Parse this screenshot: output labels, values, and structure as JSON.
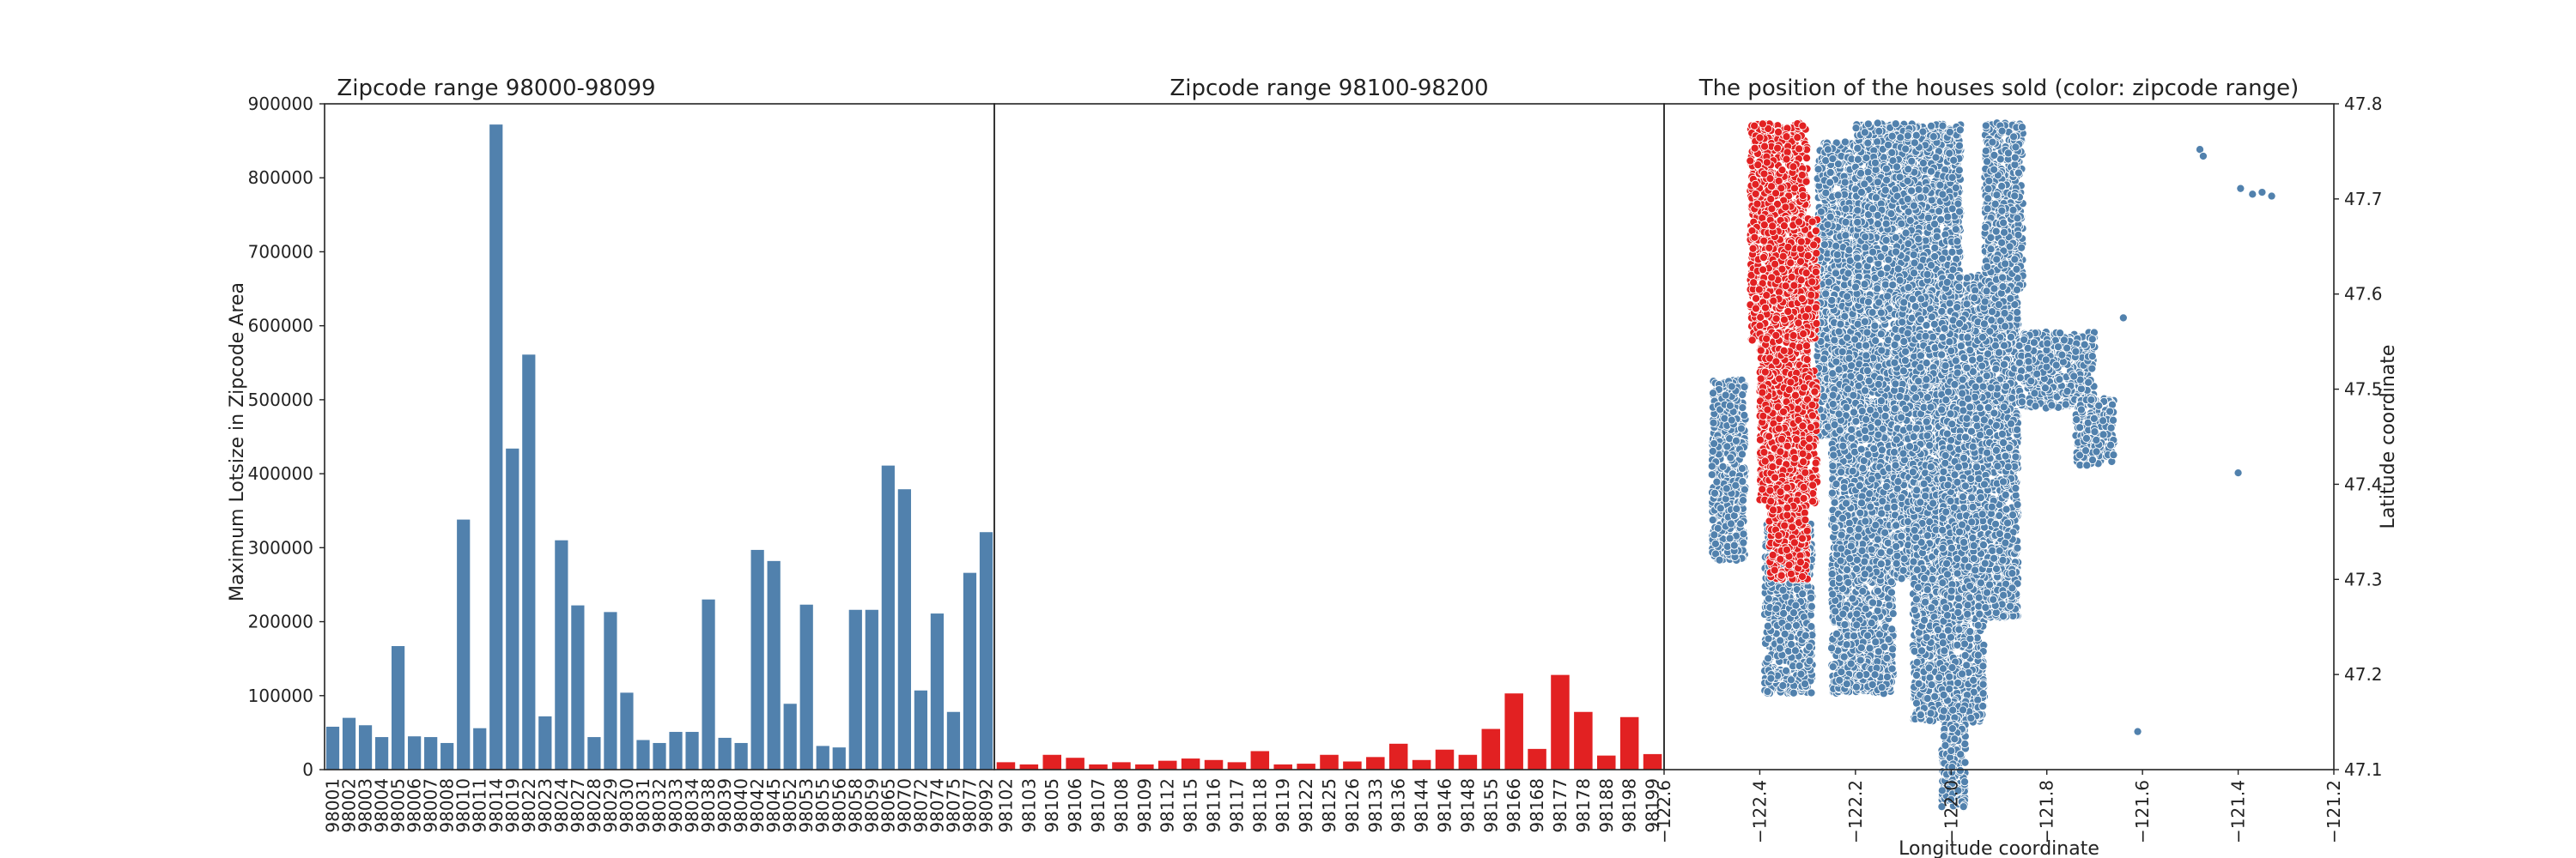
{
  "chart_data": [
    {
      "type": "bar",
      "title": "Zipcode range 98000-98099",
      "xlabel": "",
      "ylabel": "Maximum Lotsize in Zipcode Area",
      "ylim": [
        0,
        900000
      ],
      "yticks": [
        0,
        100000,
        200000,
        300000,
        400000,
        500000,
        600000,
        700000,
        800000,
        900000
      ],
      "color": "#5181ad",
      "categories": [
        "98001",
        "98002",
        "98003",
        "98004",
        "98005",
        "98006",
        "98007",
        "98008",
        "98010",
        "98011",
        "98014",
        "98019",
        "98022",
        "98023",
        "98024",
        "98027",
        "98028",
        "98029",
        "98030",
        "98031",
        "98032",
        "98033",
        "98034",
        "98038",
        "98039",
        "98040",
        "98042",
        "98045",
        "98052",
        "98053",
        "98055",
        "98056",
        "98058",
        "98059",
        "98065",
        "98070",
        "98072",
        "98074",
        "98075",
        "98077",
        "98092"
      ],
      "values": [
        58000,
        70000,
        60000,
        44000,
        167000,
        45000,
        44000,
        36000,
        338000,
        56000,
        872000,
        434000,
        561000,
        72000,
        310000,
        222000,
        44000,
        213000,
        104000,
        40000,
        36000,
        51000,
        51000,
        230000,
        43000,
        36000,
        297000,
        282000,
        89000,
        223000,
        32000,
        30000,
        216000,
        216000,
        411000,
        379000,
        107000,
        211000,
        78000,
        266000,
        321000
      ]
    },
    {
      "type": "bar",
      "title": "Zipcode range 98100-98200",
      "xlabel": "",
      "ylabel": "",
      "ylim": [
        0,
        900000
      ],
      "color": "#e22122",
      "categories": [
        "98102",
        "98103",
        "98105",
        "98106",
        "98107",
        "98108",
        "98109",
        "98112",
        "98115",
        "98116",
        "98117",
        "98118",
        "98119",
        "98122",
        "98125",
        "98126",
        "98133",
        "98136",
        "98144",
        "98146",
        "98148",
        "98155",
        "98166",
        "98168",
        "98177",
        "98178",
        "98188",
        "98198",
        "98199"
      ],
      "values": [
        10000,
        7000,
        20000,
        16000,
        7000,
        10000,
        7000,
        12000,
        15000,
        13000,
        10000,
        25000,
        7000,
        8000,
        20000,
        11000,
        17000,
        35000,
        13000,
        27000,
        20000,
        55000,
        103000,
        28000,
        128000,
        78000,
        19000,
        71000,
        21000
      ]
    },
    {
      "type": "scatter",
      "title": "The position of the houses sold (color: zipcode range)",
      "xlabel": "Longitude coordinate",
      "ylabel": "Latitude coordinate",
      "xlim": [
        -122.6,
        -121.2
      ],
      "ylim": [
        47.1,
        47.8
      ],
      "xticks": [
        "−122.6",
        "−122.4",
        "−122.2",
        "−122.0",
        "−121.8",
        "−121.6",
        "−121.4",
        "−121.2"
      ],
      "yticks": [
        "47.1",
        "47.2",
        "47.3",
        "47.4",
        "47.5",
        "47.6",
        "47.7",
        "47.8"
      ],
      "series": [
        {
          "color": "#5181ad",
          "regions": [
            {
              "lon": [
                -122.5,
                -122.43
              ],
              "lat": [
                47.32,
                47.51
              ]
            },
            {
              "lon": [
                -122.39,
                -122.29
              ],
              "lat": [
                47.18,
                47.36
              ]
            },
            {
              "lon": [
                -122.28,
                -122.2
              ],
              "lat": [
                47.45,
                47.76
              ]
            },
            {
              "lon": [
                -122.25,
                -122.12
              ],
              "lat": [
                47.18,
                47.6
              ]
            },
            {
              "lon": [
                -122.2,
                -121.98
              ],
              "lat": [
                47.58,
                47.78
              ]
            },
            {
              "lon": [
                -122.12,
                -121.98
              ],
              "lat": [
                47.3,
                47.6
              ]
            },
            {
              "lon": [
                -122.08,
                -121.93
              ],
              "lat": [
                47.15,
                47.42
              ]
            },
            {
              "lon": [
                -122.02,
                -121.86
              ],
              "lat": [
                47.26,
                47.62
              ]
            },
            {
              "lon": [
                -121.93,
                -121.85
              ],
              "lat": [
                47.6,
                47.78
              ]
            },
            {
              "lon": [
                -121.86,
                -121.7
              ],
              "lat": [
                47.48,
                47.56
              ]
            },
            {
              "lon": [
                -121.74,
                -121.66
              ],
              "lat": [
                47.42,
                47.49
              ]
            },
            {
              "lon": [
                -122.02,
                -121.97
              ],
              "lat": [
                47.06,
                47.15
              ]
            }
          ],
          "points": [
            {
              "lon": -121.48,
              "lat": 47.752
            },
            {
              "lon": -121.473,
              "lat": 47.745
            },
            {
              "lon": -121.395,
              "lat": 47.711
            },
            {
              "lon": -121.37,
              "lat": 47.705
            },
            {
              "lon": -121.35,
              "lat": 47.707
            },
            {
              "lon": -121.33,
              "lat": 47.703
            },
            {
              "lon": -121.4,
              "lat": 47.412
            },
            {
              "lon": -121.64,
              "lat": 47.575
            },
            {
              "lon": -121.61,
              "lat": 47.14
            }
          ]
        },
        {
          "color": "#e22122",
          "regions": [
            {
              "lon": [
                -122.42,
                -122.3
              ],
              "lat": [
                47.68,
                47.78
              ]
            },
            {
              "lon": [
                -122.42,
                -122.28
              ],
              "lat": [
                47.55,
                47.68
              ]
            },
            {
              "lon": [
                -122.4,
                -122.3
              ],
              "lat": [
                47.49,
                47.56
              ]
            },
            {
              "lon": [
                -122.4,
                -122.28
              ],
              "lat": [
                47.38,
                47.52
              ]
            },
            {
              "lon": [
                -122.38,
                -122.3
              ],
              "lat": [
                47.3,
                47.4
              ]
            }
          ]
        }
      ]
    }
  ]
}
